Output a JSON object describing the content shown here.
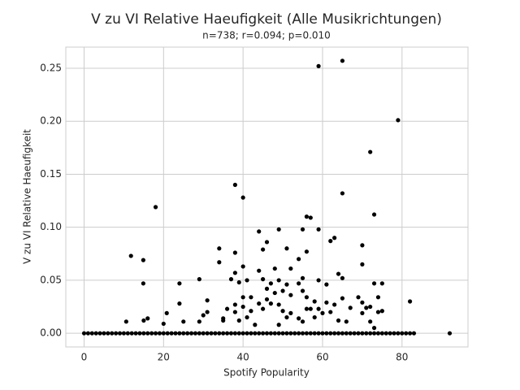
{
  "chart_data": {
    "type": "scatter",
    "title": "V zu VI Relative Haeufigkeit (Alle Musikrichtungen)",
    "subtitle": "n=738; r=0.094; p=0.010",
    "x_label": "Spotify Popularity",
    "y_label": "V zu VI Relative Haeufigkeit",
    "color": "#000000",
    "grid": true,
    "xlim": [
      -4.6,
      96.6
    ],
    "ylim": [
      -0.0129,
      0.2699
    ],
    "xticks": [
      0,
      20,
      40,
      60,
      80
    ],
    "yticks": [
      {
        "value": 0,
        "label": "0.00"
      },
      {
        "value": 0.05,
        "label": "0.05"
      },
      {
        "value": 0.1,
        "label": "0.10"
      },
      {
        "value": 0.15,
        "label": "0.15"
      },
      {
        "value": 0.2,
        "label": "0.20"
      },
      {
        "value": 0.25,
        "label": "0.25"
      }
    ],
    "x": [
      0,
      1,
      2,
      3,
      4,
      5,
      6,
      7,
      8,
      9,
      10,
      11,
      12,
      13,
      14,
      15,
      16,
      17,
      18,
      19,
      20,
      21,
      22,
      23,
      24,
      25,
      26,
      27,
      28,
      29,
      30,
      31,
      32,
      33,
      34,
      35,
      36,
      37,
      38,
      39,
      40,
      41,
      42,
      43,
      44,
      45,
      46,
      47,
      48,
      49,
      50,
      51,
      52,
      53,
      54,
      55,
      56,
      57,
      58,
      59,
      60,
      61,
      62,
      63,
      64,
      65,
      66,
      67,
      68,
      69,
      70,
      71,
      72,
      73,
      74,
      75,
      76,
      77,
      78,
      79,
      80,
      81,
      82,
      83,
      92,
      10.6,
      11.8,
      14.9,
      14.9,
      15,
      16,
      18,
      20,
      20.8,
      24,
      24,
      25,
      29,
      29,
      30,
      31,
      31,
      34,
      34,
      35,
      35,
      36,
      37,
      38,
      38,
      38,
      38,
      38,
      39,
      39,
      40,
      40,
      40,
      40,
      41,
      41,
      42,
      42,
      43,
      44,
      44,
      44,
      45,
      45,
      45,
      46,
      46,
      46,
      47,
      47,
      48,
      48,
      49,
      49,
      49,
      49,
      50,
      50,
      51,
      51,
      51,
      52,
      52,
      52,
      54,
      54,
      54,
      55,
      55,
      55,
      55,
      56,
      56,
      56,
      56,
      57,
      57,
      58,
      58,
      59,
      59,
      59,
      59,
      60,
      61,
      61,
      62,
      62,
      63,
      63,
      64,
      64,
      65,
      65,
      65,
      65,
      66,
      67,
      69,
      70,
      70,
      70,
      70,
      71,
      72,
      72,
      72,
      73,
      73,
      73,
      74,
      74,
      75,
      75,
      79,
      82
    ],
    "y": [
      0,
      0,
      0,
      0,
      0,
      0,
      0,
      0,
      0,
      0,
      0,
      0,
      0,
      0,
      0,
      0,
      0,
      0,
      0,
      0,
      0,
      0,
      0,
      0,
      0,
      0,
      0,
      0,
      0,
      0,
      0,
      0,
      0,
      0,
      0,
      0,
      0,
      0,
      0,
      0,
      0,
      0,
      0,
      0,
      0,
      0,
      0,
      0,
      0,
      0,
      0,
      0,
      0,
      0,
      0,
      0,
      0,
      0,
      0,
      0,
      0,
      0,
      0,
      0,
      0,
      0,
      0,
      0,
      0,
      0,
      0,
      0,
      0,
      0,
      0,
      0,
      0,
      0,
      0,
      0,
      0,
      0,
      0,
      0,
      0,
      0.011,
      0.073,
      0.069,
      0.047,
      0.012,
      0.014,
      0.119,
      0.009,
      0.019,
      0.047,
      0.028,
      0.011,
      0.051,
      0.011,
      0.017,
      0.031,
      0.02,
      0.08,
      0.067,
      0.014,
      0.012,
      0.023,
      0.051,
      0.14,
      0.076,
      0.057,
      0.027,
      0.02,
      0.048,
      0.012,
      0.128,
      0.063,
      0.034,
      0.025,
      0.05,
      0.015,
      0.034,
      0.021,
      0.008,
      0.096,
      0.059,
      0.028,
      0.079,
      0.051,
      0.023,
      0.086,
      0.042,
      0.032,
      0.047,
      0.028,
      0.061,
      0.038,
      0.098,
      0.05,
      0.027,
      0.008,
      0.04,
      0.021,
      0.08,
      0.046,
      0.015,
      0.061,
      0.036,
      0.019,
      0.07,
      0.047,
      0.014,
      0.098,
      0.052,
      0.04,
      0.011,
      0.11,
      0.077,
      0.034,
      0.023,
      0.109,
      0.023,
      0.03,
      0.015,
      0.252,
      0.098,
      0.05,
      0.023,
      0.019,
      0.046,
      0.029,
      0.087,
      0.02,
      0.09,
      0.027,
      0.056,
      0.012,
      0.257,
      0.132,
      0.052,
      0.033,
      0.011,
      0.024,
      0.034,
      0.083,
      0.065,
      0.029,
      0.019,
      0.024,
      0.171,
      0.025,
      0.011,
      0.112,
      0.047,
      0.005,
      0.034,
      0.02,
      0.047,
      0.021,
      0.201,
      0.03
    ]
  }
}
